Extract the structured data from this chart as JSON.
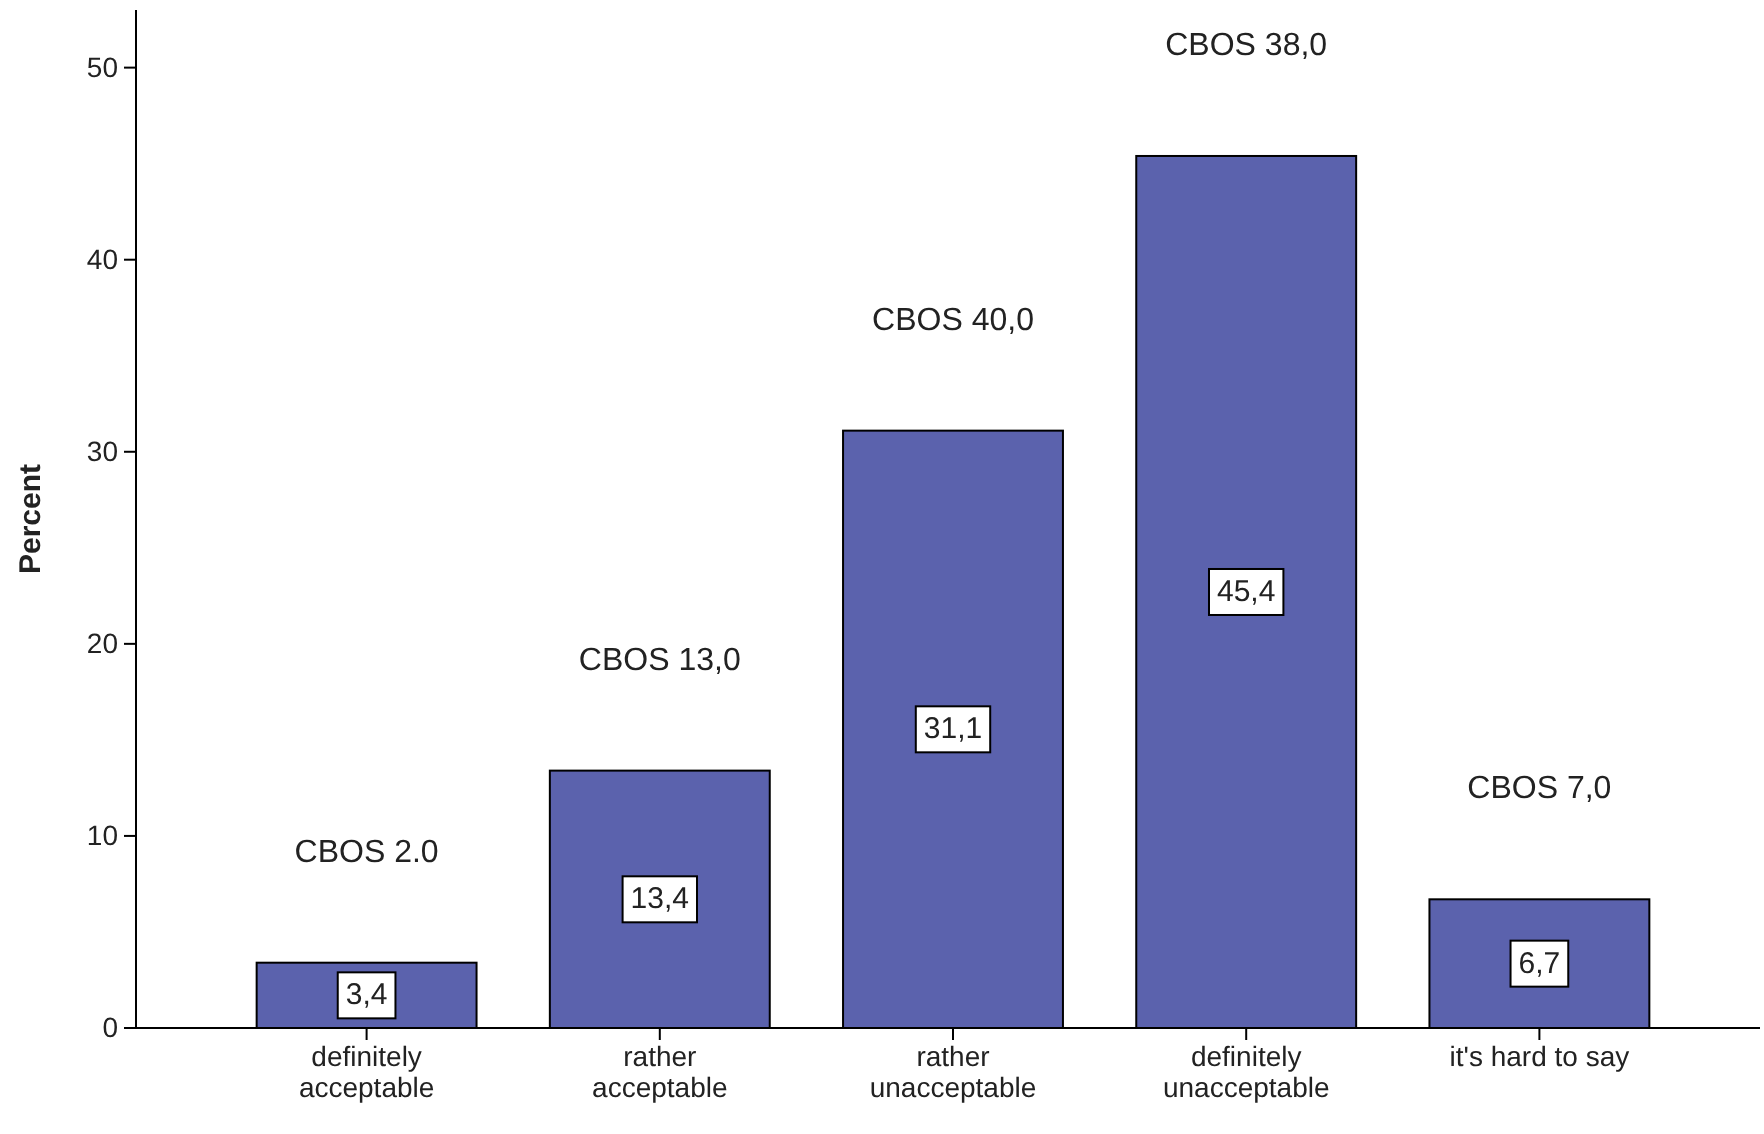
{
  "chart_data": {
    "type": "bar",
    "ylabel": "Percent",
    "categories": [
      "definitely acceptable",
      "rather acceptable",
      "rather unacceptable",
      "definitely unacceptable",
      "it's hard to say"
    ],
    "values": [
      3.4,
      13.4,
      31.1,
      45.4,
      6.7
    ],
    "value_labels": [
      "3,4",
      "13,4",
      "31,1",
      "45,4",
      "6,7"
    ],
    "color": "#5b62ad",
    "ylim": [
      0,
      53
    ],
    "yticks": [
      0,
      10,
      20,
      30,
      40,
      50
    ],
    "grid": false,
    "annotations": [
      "CBOS 2.0",
      "CBOS 13,0",
      "CBOS 40,0",
      "CBOS 38,0",
      "CBOS 7,0"
    ]
  }
}
